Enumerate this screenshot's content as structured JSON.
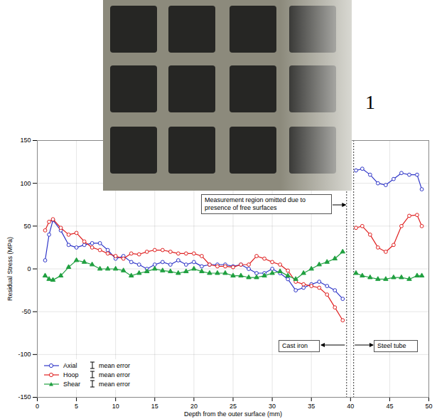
{
  "chart_data": {
    "type": "line",
    "x_label": "Depth from the outer surface (mm)",
    "y_label": "Residual Stress (MPa)",
    "xlim": [
      0,
      50
    ],
    "xticks": [
      0,
      5,
      10,
      15,
      20,
      25,
      30,
      35,
      40,
      45,
      50
    ],
    "ylim": [
      -150,
      150
    ],
    "yticks": [
      -150,
      -100,
      -50,
      0,
      50,
      100,
      150
    ],
    "grid": true,
    "legend": "bottom-left",
    "error_label": "mean error",
    "photo_label": "1",
    "annotations": [
      "Measurement region omitted due to presence of free surfaces",
      "Cast iron",
      "Steel tube"
    ],
    "boundaries": [
      39.5,
      40.4
    ],
    "x": [
      1,
      1.5,
      2,
      3,
      4,
      5,
      6,
      7,
      8,
      9,
      10,
      11,
      12,
      13,
      14,
      15,
      16,
      17,
      18,
      19,
      20,
      21,
      22,
      23,
      24,
      25,
      26,
      27,
      28,
      29,
      30,
      31,
      32,
      33,
      34,
      35,
      36,
      37,
      38,
      39,
      40,
      40.7,
      41.5,
      42.5,
      43.5,
      44.5,
      45.5,
      46.5,
      47.5,
      48.5,
      49.1
    ],
    "series": [
      {
        "name": "Axial",
        "color": "#2e35c8",
        "marker": "circle",
        "values": [
          10,
          40,
          57,
          45,
          28,
          25,
          28,
          30,
          30,
          22,
          12,
          15,
          8,
          5,
          0,
          5,
          8,
          5,
          10,
          5,
          8,
          3,
          5,
          5,
          5,
          3,
          5,
          0,
          -5,
          -5,
          0,
          -5,
          -12,
          -25,
          -22,
          -18,
          -15,
          -20,
          -25,
          -35,
          null,
          115,
          117,
          110,
          100,
          98,
          105,
          112,
          110,
          110,
          93
        ]
      },
      {
        "name": "Hoop",
        "color": "#e02020",
        "marker": "circle",
        "values": [
          45,
          55,
          58,
          48,
          40,
          42,
          32,
          25,
          22,
          18,
          15,
          12,
          18,
          17,
          20,
          22,
          22,
          20,
          18,
          18,
          18,
          15,
          5,
          3,
          3,
          2,
          5,
          5,
          15,
          12,
          8,
          5,
          -2,
          -15,
          -18,
          -20,
          -22,
          -30,
          -45,
          -60,
          null,
          48,
          50,
          40,
          25,
          20,
          28,
          50,
          62,
          63,
          50
        ]
      },
      {
        "name": "Shear",
        "color": "#20a040",
        "marker": "triangle",
        "values": [
          -8,
          -12,
          -13,
          -8,
          2,
          10,
          8,
          5,
          0,
          0,
          0,
          -2,
          -8,
          -5,
          -3,
          0,
          -2,
          -3,
          -5,
          -3,
          0,
          -3,
          -5,
          -5,
          -5,
          -8,
          -8,
          -10,
          -10,
          -8,
          -5,
          -3,
          -8,
          -12,
          -5,
          0,
          5,
          8,
          12,
          20,
          null,
          -5,
          -8,
          -10,
          -12,
          -12,
          -10,
          -10,
          -12,
          -8,
          -8
        ]
      }
    ]
  }
}
